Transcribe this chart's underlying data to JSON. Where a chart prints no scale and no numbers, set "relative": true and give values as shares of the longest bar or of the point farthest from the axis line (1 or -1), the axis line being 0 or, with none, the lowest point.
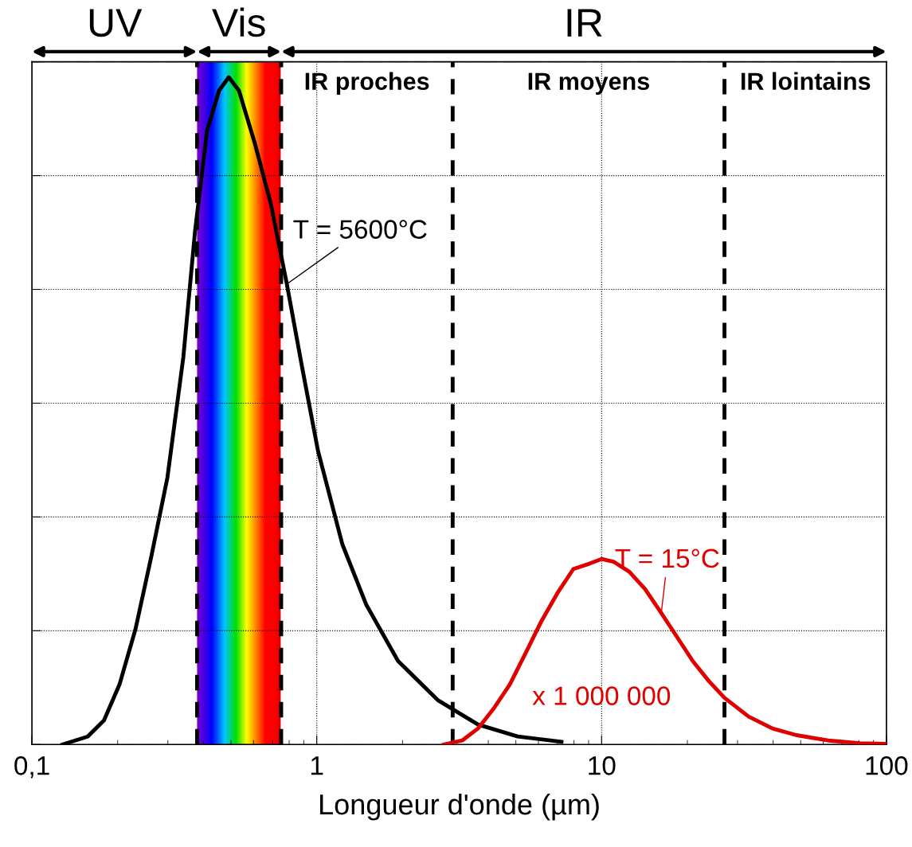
{
  "chart_data": {
    "type": "line",
    "relative": true,
    "xlabel": "Longueur d'onde (µm)",
    "log": "x",
    "xlim": [
      0.1,
      100
    ],
    "xticks": [
      {
        "value": 0.1,
        "label": "0,1"
      },
      1,
      10,
      100
    ],
    "grid": true,
    "marker": "none",
    "line_style": "solid",
    "tick_labels": "x",
    "series": [
      {
        "name": "T = 5600°C",
        "color": "#000000",
        "x": [
          0.128,
          0.157,
          0.179,
          0.203,
          0.231,
          0.262,
          0.299,
          0.34,
          0.374,
          0.412,
          0.454,
          0.491,
          0.533,
          0.607,
          0.69,
          0.785,
          0.893,
          1.01,
          1.23,
          1.49,
          1.93,
          2.67,
          3.68,
          5.07,
          7.23
        ],
        "values": [
          0,
          0.012,
          0.036,
          0.09,
          0.173,
          0.28,
          0.4,
          0.58,
          0.77,
          0.92,
          0.98,
          1,
          0.98,
          0.9,
          0.81,
          0.69,
          0.56,
          0.44,
          0.3,
          0.21,
          0.125,
          0.066,
          0.03,
          0.012,
          0.004
        ]
      },
      {
        "name": "T = 15°C",
        "color": "#e00000",
        "x": [
          2.79,
          3.24,
          3.68,
          4.18,
          4.76,
          5.41,
          6.15,
          7.0,
          7.96,
          9.06,
          10,
          11.0,
          12.5,
          14.2,
          16.2,
          18.4,
          20.9,
          23.8,
          27.0,
          32.8,
          39.8,
          48.3,
          62.5,
          80.8,
          100
        ],
        "values": [
          0,
          0.006,
          0.024,
          0.054,
          0.09,
          0.137,
          0.185,
          0.227,
          0.263,
          0.271,
          0.278,
          0.274,
          0.259,
          0.233,
          0.197,
          0.161,
          0.125,
          0.095,
          0.07,
          0.042,
          0.024,
          0.014,
          0.006,
          0.002,
          0.001
        ]
      }
    ],
    "ref_lines": [
      {
        "axis": "x",
        "value": 0.38,
        "color": "#000000",
        "line_style": "dashed"
      },
      {
        "axis": "x",
        "value": 0.75,
        "color": "#000000",
        "line_style": "dashed"
      },
      {
        "axis": "x",
        "value": 3,
        "color": "#000000",
        "line_style": "dashed"
      },
      {
        "axis": "x",
        "value": 27,
        "color": "#000000",
        "line_style": "dashed"
      }
    ],
    "bands": [
      {
        "axis": "x",
        "from": 0.38,
        "to": 0.75,
        "label": "Vis"
      }
    ],
    "annotations": [
      "UV",
      "IR",
      "IR proches",
      "IR moyens",
      "IR lointains",
      "x 1 000 000"
    ]
  }
}
